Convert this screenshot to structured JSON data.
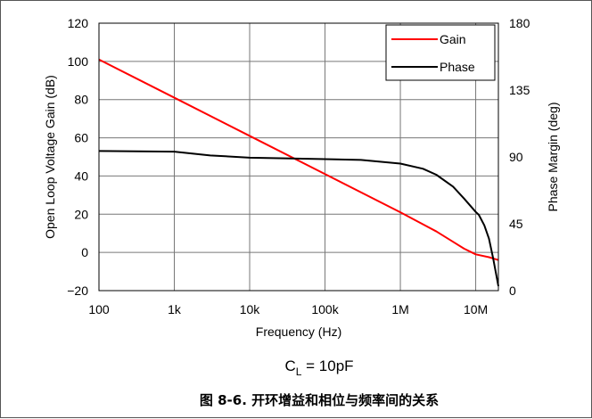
{
  "chart_data": {
    "type": "line",
    "xlabel": "Frequency (Hz)",
    "ylabel": "Open Loop Voltage Gain (dB)",
    "y2label": "Phase Margin (deg)",
    "xscale": "log",
    "xlim": [
      100,
      20000000
    ],
    "ylim": [
      -20,
      120
    ],
    "y2lim": [
      0,
      180
    ],
    "x_ticks": [
      100,
      1000,
      10000,
      100000,
      1000000,
      10000000
    ],
    "x_tick_labels": [
      "100",
      "1k",
      "10k",
      "100k",
      "1M",
      "10M"
    ],
    "y_ticks": [
      -20,
      0,
      20,
      40,
      60,
      80,
      100,
      120
    ],
    "y_tick_labels": [
      "−20",
      "0",
      "20",
      "40",
      "60",
      "80",
      "100",
      "120"
    ],
    "y2_ticks": [
      0,
      45,
      90,
      135,
      180
    ],
    "y2_tick_labels": [
      "0",
      "45",
      "90",
      "135",
      "180"
    ],
    "grid": true,
    "legend_position": "top-right",
    "series": [
      {
        "name": "Gain",
        "color": "#ff0000",
        "axis": "left",
        "x": [
          100,
          1000,
          10000,
          100000,
          1000000,
          3000000,
          7000000,
          10000000,
          15000000,
          20000000
        ],
        "y": [
          101,
          81,
          61,
          41,
          21,
          11,
          2,
          -1,
          -2.5,
          -4
        ]
      },
      {
        "name": "Phase",
        "color": "#000000",
        "axis": "right",
        "x": [
          100,
          1000,
          3000,
          10000,
          30000,
          100000,
          300000,
          1000000,
          2000000,
          3000000,
          5000000,
          7000000,
          10000000,
          11000000,
          13000000,
          15000000,
          17000000,
          20000000
        ],
        "y": [
          94,
          93.5,
          91,
          89.5,
          89,
          88.5,
          88,
          85.5,
          82,
          78,
          70,
          62,
          53,
          51,
          44,
          35,
          22,
          3
        ]
      }
    ]
  },
  "condition_label": "C",
  "condition_subscript": "L",
  "condition_value": " = 10pF",
  "figure_caption": "图 8-6. 开环增益和相位与频率间的关系"
}
